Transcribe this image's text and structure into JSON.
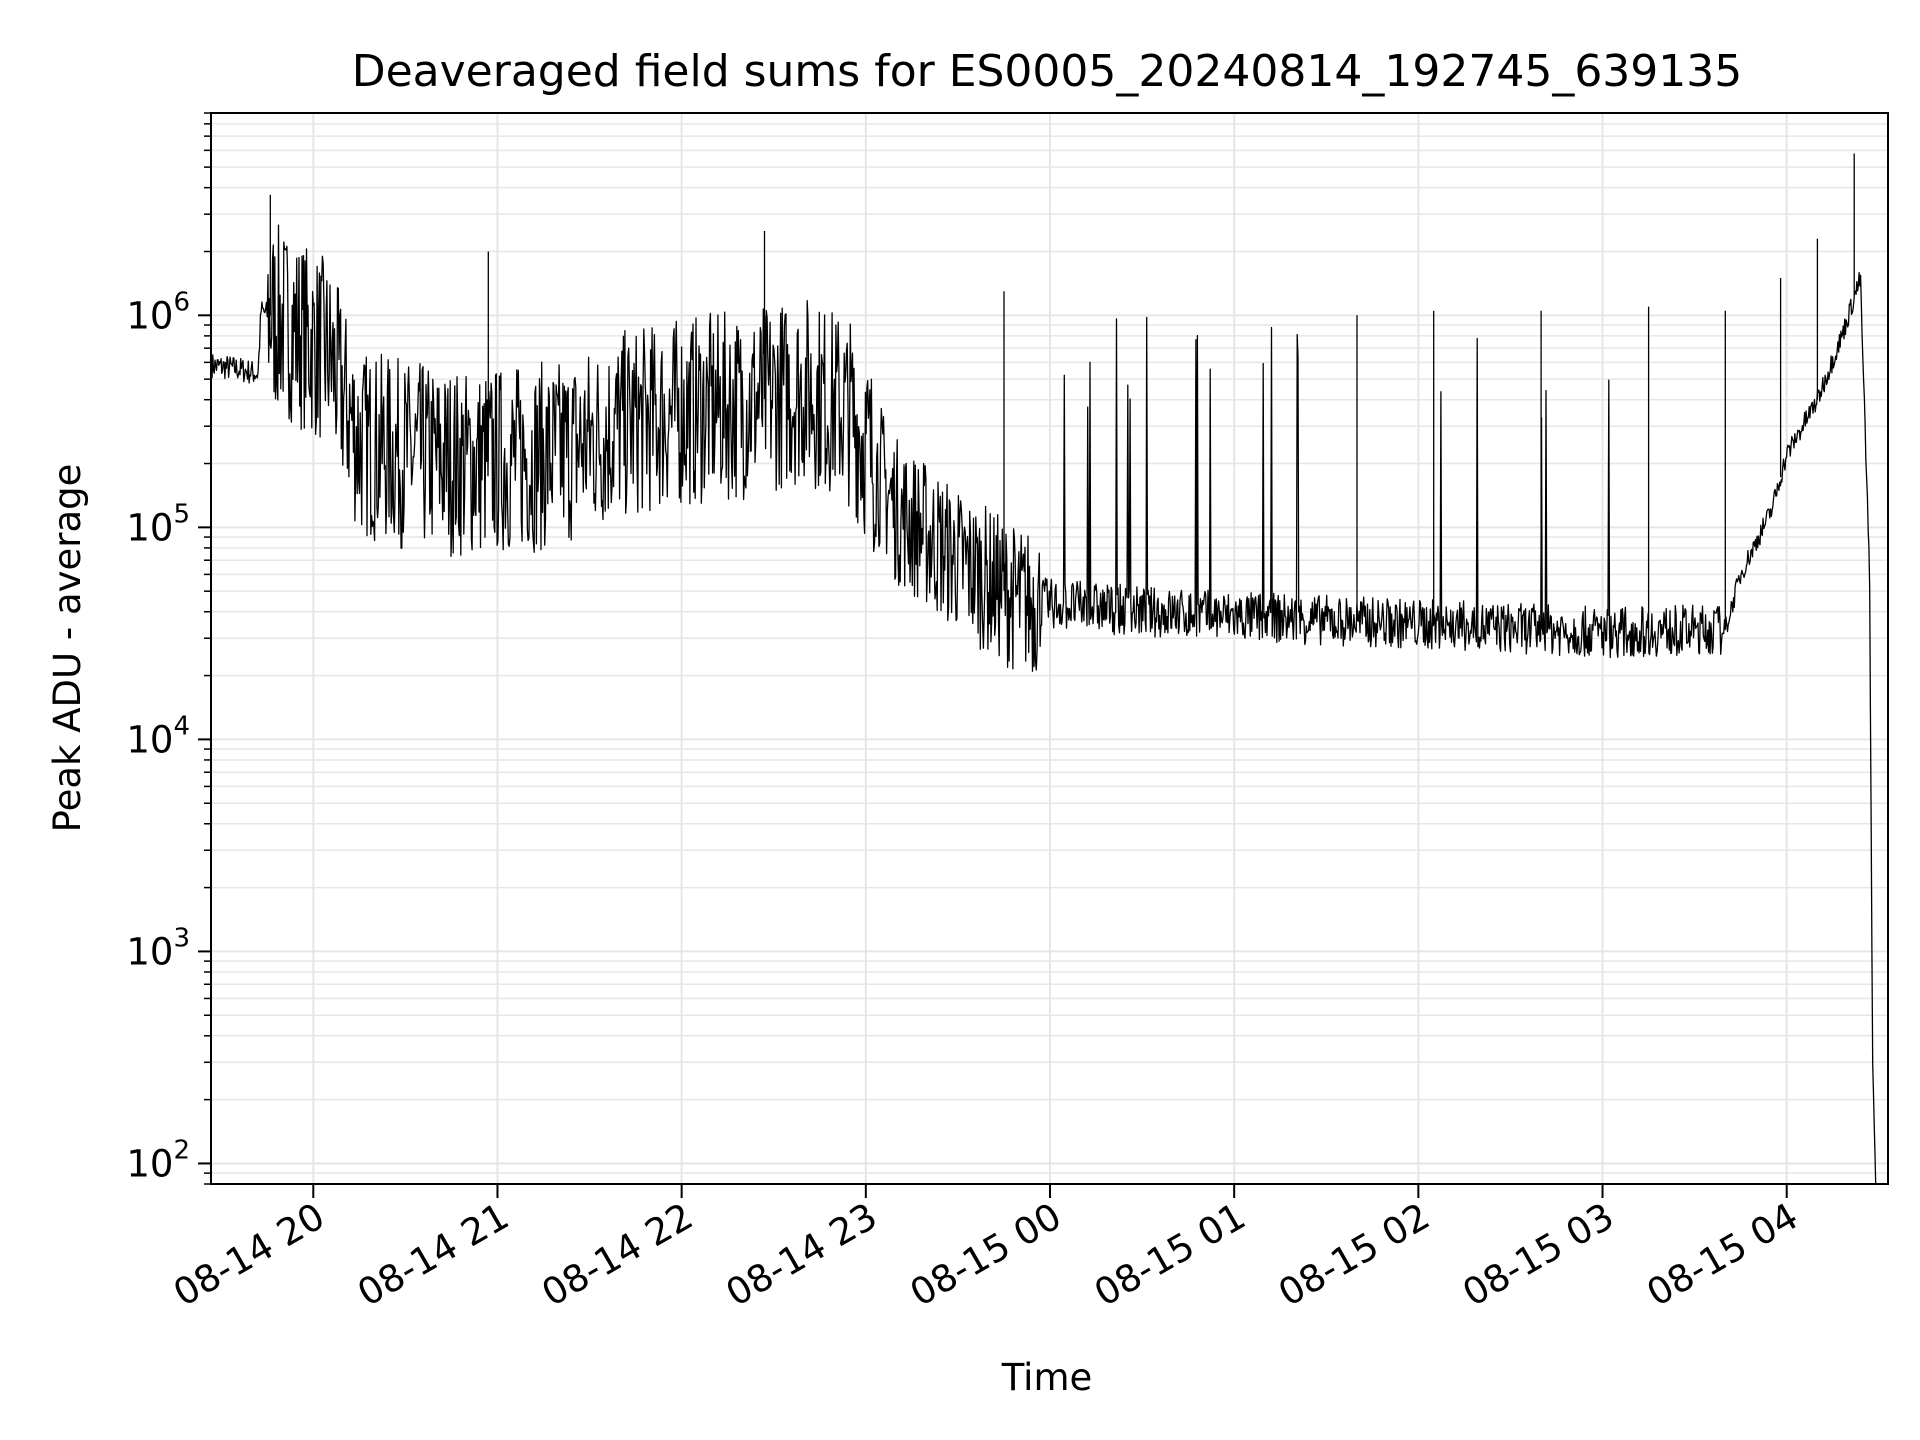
{
  "chart_data": {
    "type": "line",
    "title": "Deaveraged field sums for ES0005_20240814_192745_639135",
    "xlabel": "Time",
    "ylabel": "Peak ADU - average",
    "yscale": "log",
    "ylim": [
      80,
      9000000
    ],
    "xlim": [
      "2024-08-14 19:27",
      "2024-08-15 04:33"
    ],
    "grid": true,
    "legend": "none",
    "line_color": "#000000",
    "grid_color": "#e6e6e6",
    "x_ticks": [
      {
        "value": "2024-08-14 20:00",
        "label": "08-14 20"
      },
      {
        "value": "2024-08-14 21:00",
        "label": "08-14 21"
      },
      {
        "value": "2024-08-14 22:00",
        "label": "08-14 22"
      },
      {
        "value": "2024-08-14 23:00",
        "label": "08-14 23"
      },
      {
        "value": "2024-08-15 00:00",
        "label": "08-15 00"
      },
      {
        "value": "2024-08-15 01:00",
        "label": "08-15 01"
      },
      {
        "value": "2024-08-15 02:00",
        "label": "08-15 02"
      },
      {
        "value": "2024-08-15 03:00",
        "label": "08-15 03"
      },
      {
        "value": "2024-08-15 04:00",
        "label": "08-15 04"
      }
    ],
    "y_ticks": [
      {
        "value": 100,
        "base": "10",
        "exp": "2"
      },
      {
        "value": 1000,
        "base": "10",
        "exp": "3"
      },
      {
        "value": 10000,
        "base": "10",
        "exp": "4"
      },
      {
        "value": 100000,
        "base": "10",
        "exp": "5"
      },
      {
        "value": 1000000,
        "base": "10",
        "exp": "6"
      }
    ],
    "series": [
      {
        "baseline_profile": [
          {
            "x": "2024-08-14 19:27",
            "y": 580000
          },
          {
            "x": "2024-08-14 19:35",
            "y": 560000
          },
          {
            "x": "2024-08-14 19:42",
            "y": 530000
          },
          {
            "x": "2024-08-14 19:43",
            "y": 1050000
          },
          {
            "x": "2024-08-14 19:52",
            "y": 900000
          },
          {
            "x": "2024-08-14 20:05",
            "y": 650000
          },
          {
            "x": "2024-08-14 20:15",
            "y": 250000
          },
          {
            "x": "2024-08-14 20:30",
            "y": 220000
          },
          {
            "x": "2024-08-14 20:50",
            "y": 200000
          },
          {
            "x": "2024-08-14 21:05",
            "y": 210000
          },
          {
            "x": "2024-08-14 21:20",
            "y": 220000
          },
          {
            "x": "2024-08-14 21:40",
            "y": 300000
          },
          {
            "x": "2024-08-14 22:00",
            "y": 350000
          },
          {
            "x": "2024-08-14 22:20",
            "y": 380000
          },
          {
            "x": "2024-08-14 22:40",
            "y": 450000
          },
          {
            "x": "2024-08-14 22:55",
            "y": 350000
          },
          {
            "x": "2024-08-14 23:10",
            "y": 120000
          },
          {
            "x": "2024-08-14 23:30",
            "y": 70000
          },
          {
            "x": "2024-08-14 23:50",
            "y": 45000
          },
          {
            "x": "2024-08-15 00:30",
            "y": 40000
          },
          {
            "x": "2024-08-15 01:00",
            "y": 38000
          },
          {
            "x": "2024-08-15 02:00",
            "y": 35000
          },
          {
            "x": "2024-08-15 03:00",
            "y": 32000
          },
          {
            "x": "2024-08-15 03:40",
            "y": 33000
          },
          {
            "x": "2024-08-15 03:45",
            "y": 60000
          },
          {
            "x": "2024-08-15 03:55",
            "y": 120000
          },
          {
            "x": "2024-08-15 04:00",
            "y": 220000
          },
          {
            "x": "2024-08-15 04:10",
            "y": 400000
          },
          {
            "x": "2024-08-15 04:18",
            "y": 800000
          },
          {
            "x": "2024-08-15 04:24",
            "y": 1500000
          },
          {
            "x": "2024-08-15 04:27",
            "y": 60000
          },
          {
            "x": "2024-08-15 04:28",
            "y": 300
          },
          {
            "x": "2024-08-15 04:29",
            "y": 80
          }
        ],
        "spikes": [
          {
            "x": "2024-08-14 19:46",
            "y": 3700000
          },
          {
            "x": "2024-08-14 20:57",
            "y": 2000000
          },
          {
            "x": "2024-08-14 22:27",
            "y": 2500000
          },
          {
            "x": "2024-08-14 23:45",
            "y": 1300000
          },
          {
            "x": "2024-08-15 01:40",
            "y": 1000000
          },
          {
            "x": "2024-08-15 02:05",
            "y": 1050000
          },
          {
            "x": "2024-08-15 02:40",
            "y": 1050000
          },
          {
            "x": "2024-08-15 03:15",
            "y": 1100000
          },
          {
            "x": "2024-08-15 03:40",
            "y": 1050000
          },
          {
            "x": "2024-08-15 03:58",
            "y": 1500000
          },
          {
            "x": "2024-08-15 04:10",
            "y": 2300000
          },
          {
            "x": "2024-08-15 04:22",
            "y": 5800000
          }
        ]
      }
    ]
  }
}
